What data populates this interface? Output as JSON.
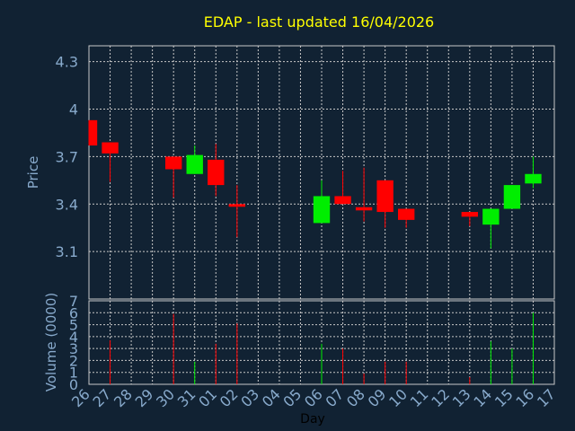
{
  "chart_data": {
    "type": "candlestick",
    "title": "EDAP - last updated 16/04/2026",
    "xlabel": "Day",
    "price_panel": {
      "ylabel": "Price",
      "yticks": [
        "3.1",
        "3.4",
        "3.7",
        "4",
        "4.3"
      ],
      "ylim": [
        2.8,
        4.4
      ],
      "grid": true
    },
    "volume_panel": {
      "ylabel": "Volume (0000)",
      "yticks": [
        "0",
        "1",
        "2",
        "3",
        "4",
        "5",
        "6",
        "7"
      ],
      "ylim": [
        0,
        7
      ],
      "grid": true
    },
    "x_ticks": [
      "26",
      "27",
      "28",
      "29",
      "30",
      "31",
      "01",
      "02",
      "03",
      "04",
      "05",
      "06",
      "07",
      "08",
      "09",
      "10",
      "11",
      "12",
      "13",
      "14",
      "15",
      "16",
      "17"
    ],
    "candles": [
      {
        "x": "26",
        "open": 3.93,
        "high": 3.93,
        "low": 3.77,
        "close": 3.77,
        "volume": 0
      },
      {
        "x": "27",
        "open": 3.79,
        "high": 3.79,
        "low": 3.54,
        "close": 3.72,
        "volume": 3.7
      },
      {
        "x": "30",
        "open": 3.7,
        "high": 3.7,
        "low": 3.44,
        "close": 3.62,
        "volume": 5.9
      },
      {
        "x": "31",
        "open": 3.59,
        "high": 3.77,
        "low": 3.59,
        "close": 3.71,
        "volume": 1.9
      },
      {
        "x": "01",
        "open": 3.68,
        "high": 3.78,
        "low": 3.45,
        "close": 3.52,
        "volume": 3.4
      },
      {
        "x": "02",
        "open": 3.4,
        "high": 3.52,
        "low": 3.19,
        "close": 3.39,
        "volume": 5.1
      },
      {
        "x": "06",
        "open": 3.28,
        "high": 3.55,
        "low": 3.28,
        "close": 3.45,
        "volume": 3.4
      },
      {
        "x": "07",
        "open": 3.45,
        "high": 3.61,
        "low": 3.4,
        "close": 3.4,
        "volume": 3.0
      },
      {
        "x": "08",
        "open": 3.38,
        "high": 3.63,
        "low": 3.29,
        "close": 3.36,
        "volume": 0.9
      },
      {
        "x": "09",
        "open": 3.55,
        "high": 3.55,
        "low": 3.25,
        "close": 3.35,
        "volume": 1.9
      },
      {
        "x": "10",
        "open": 3.37,
        "high": 3.37,
        "low": 3.25,
        "close": 3.3,
        "volume": 1.9
      },
      {
        "x": "13",
        "open": 3.35,
        "high": 3.35,
        "low": 3.26,
        "close": 3.32,
        "volume": 0.6
      },
      {
        "x": "14",
        "open": 3.27,
        "high": 3.37,
        "low": 3.12,
        "close": 3.37,
        "volume": 3.6
      },
      {
        "x": "15",
        "open": 3.37,
        "high": 3.52,
        "low": 3.37,
        "close": 3.52,
        "volume": 3.0
      },
      {
        "x": "16",
        "open": 3.53,
        "high": 3.7,
        "low": 3.5,
        "close": 3.59,
        "volume": 6.0
      }
    ]
  },
  "colors": {
    "background": "#112233",
    "grid": "#c8c8c8",
    "up": "#00ee00",
    "down": "#ff0000",
    "title": "#ffff00",
    "axis_text": "#88aacc",
    "xlabel": "#000000"
  }
}
